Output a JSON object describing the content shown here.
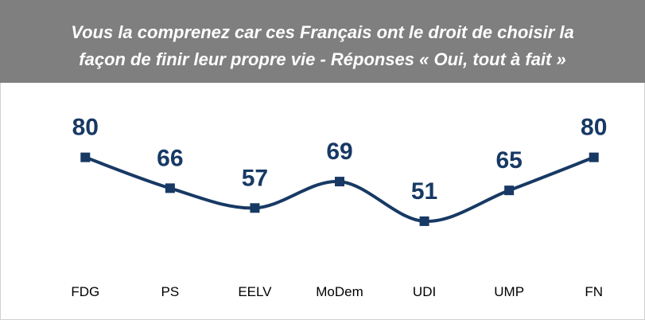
{
  "chart_data": {
    "type": "line",
    "title": [
      "Vous la comprenez car ces Français ont le droit de choisir la",
      "façon de finir leur propre vie - Réponses « Oui, tout à fait »"
    ],
    "categories": [
      "FDG",
      "PS",
      "EELV",
      "MoDem",
      "UDI",
      "UMP",
      "FN"
    ],
    "values": [
      80,
      66,
      57,
      69,
      51,
      65,
      80
    ],
    "color": "#173964",
    "ylim": [
      30,
      90
    ]
  }
}
